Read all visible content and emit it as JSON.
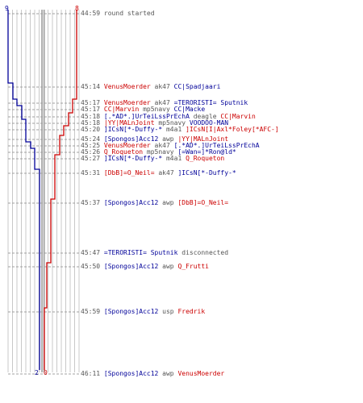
{
  "colors": {
    "blue_team": "#000099",
    "red_team": "#cc0000",
    "text": "#555555",
    "grid": "#c8c8c8"
  },
  "start": {
    "blue_count": "9",
    "red_count": "8"
  },
  "end": {
    "blue_count": "2",
    "red_count": "0"
  },
  "events": [
    {
      "time": "44:59",
      "parts": [
        {
          "text": "round started",
          "team": "gray"
        }
      ]
    },
    {
      "time": "45:14",
      "parts": [
        {
          "text": "VenusMoerder",
          "team": "red"
        },
        {
          "text": " ak47 ",
          "team": "gray"
        },
        {
          "text": "CC|Spadjaari",
          "team": "blue"
        }
      ]
    },
    {
      "time": "45:17",
      "parts": [
        {
          "text": "VenusMoerder",
          "team": "red"
        },
        {
          "text": " ak47 ",
          "team": "gray"
        },
        {
          "text": "=TERORISTI= Sputnik",
          "team": "blue"
        }
      ]
    },
    {
      "time": "45:17",
      "parts": [
        {
          "text": "CC|Marvin",
          "team": "red"
        },
        {
          "text": " mp5navy ",
          "team": "gray"
        },
        {
          "text": "CC|Macke",
          "team": "blue"
        }
      ]
    },
    {
      "time": "45:18",
      "parts": [
        {
          "text": "[.*AD*.]UrTeiLssPrEchA",
          "team": "blue"
        },
        {
          "text": " deagle ",
          "team": "gray"
        },
        {
          "text": "CC|Marvin",
          "team": "red"
        }
      ]
    },
    {
      "time": "45:18",
      "parts": [
        {
          "text": "|YY|MALnJoint",
          "team": "red"
        },
        {
          "text": " mp5navy ",
          "team": "gray"
        },
        {
          "text": "VOODOO-MAN",
          "team": "blue"
        }
      ]
    },
    {
      "time": "45:20",
      "parts": [
        {
          "text": "]ICsN[*-Duffy-*",
          "team": "blue"
        },
        {
          "text": " m4a1 ",
          "team": "gray"
        },
        {
          "text": "]ICsN[I|Axl*Foley[*AFC-]",
          "team": "red"
        }
      ]
    },
    {
      "time": "45:24",
      "parts": [
        {
          "text": "[Spongos]Acc12",
          "team": "blue"
        },
        {
          "text": " awp ",
          "team": "gray"
        },
        {
          "text": "|YY|MALnJoint",
          "team": "red"
        }
      ]
    },
    {
      "time": "45:25",
      "parts": [
        {
          "text": "VenusMoerder",
          "team": "red"
        },
        {
          "text": " ak47 ",
          "team": "gray"
        },
        {
          "text": "[.*AD*.]UrTeiLssPrEchA",
          "team": "blue"
        }
      ]
    },
    {
      "time": "45:26",
      "parts": [
        {
          "text": "Q_Roqueton",
          "team": "red"
        },
        {
          "text": " mp5navy ",
          "team": "gray"
        },
        {
          "text": "[=Wan=]*Ron@ld*",
          "team": "blue"
        }
      ]
    },
    {
      "time": "45:27",
      "parts": [
        {
          "text": "]ICsN[*-Duffy-*",
          "team": "blue"
        },
        {
          "text": " m4a1 ",
          "team": "gray"
        },
        {
          "text": "Q_Roqueton",
          "team": "red"
        }
      ]
    },
    {
      "time": "45:31",
      "parts": [
        {
          "text": "[DbB]=O_Neil=",
          "team": "red"
        },
        {
          "text": " ak47 ",
          "team": "gray"
        },
        {
          "text": "]ICsN[*-Duffy-*",
          "team": "blue"
        }
      ]
    },
    {
      "time": "45:37",
      "parts": [
        {
          "text": "[Spongos]Acc12",
          "team": "blue"
        },
        {
          "text": " awp ",
          "team": "gray"
        },
        {
          "text": "[DbB]=O_Neil=",
          "team": "red"
        }
      ]
    },
    {
      "time": "45:47",
      "parts": [
        {
          "text": "=TERORISTI= Sputnik",
          "team": "blue"
        },
        {
          "text": " disconnected",
          "team": "gray"
        }
      ]
    },
    {
      "time": "45:50",
      "parts": [
        {
          "text": "[Spongos]Acc12",
          "team": "blue"
        },
        {
          "text": " awp ",
          "team": "gray"
        },
        {
          "text": "Q_Frutti",
          "team": "red"
        }
      ]
    },
    {
      "time": "45:59",
      "parts": [
        {
          "text": "[Spongos]Acc12",
          "team": "blue"
        },
        {
          "text": " usp ",
          "team": "gray"
        },
        {
          "text": "Fredrik",
          "team": "red"
        }
      ]
    },
    {
      "time": "46:11",
      "parts": [
        {
          "text": "[Spongos]Acc12",
          "team": "blue"
        },
        {
          "text": " awp ",
          "team": "gray"
        },
        {
          "text": "VenusMoerder",
          "team": "red"
        }
      ]
    }
  ]
}
